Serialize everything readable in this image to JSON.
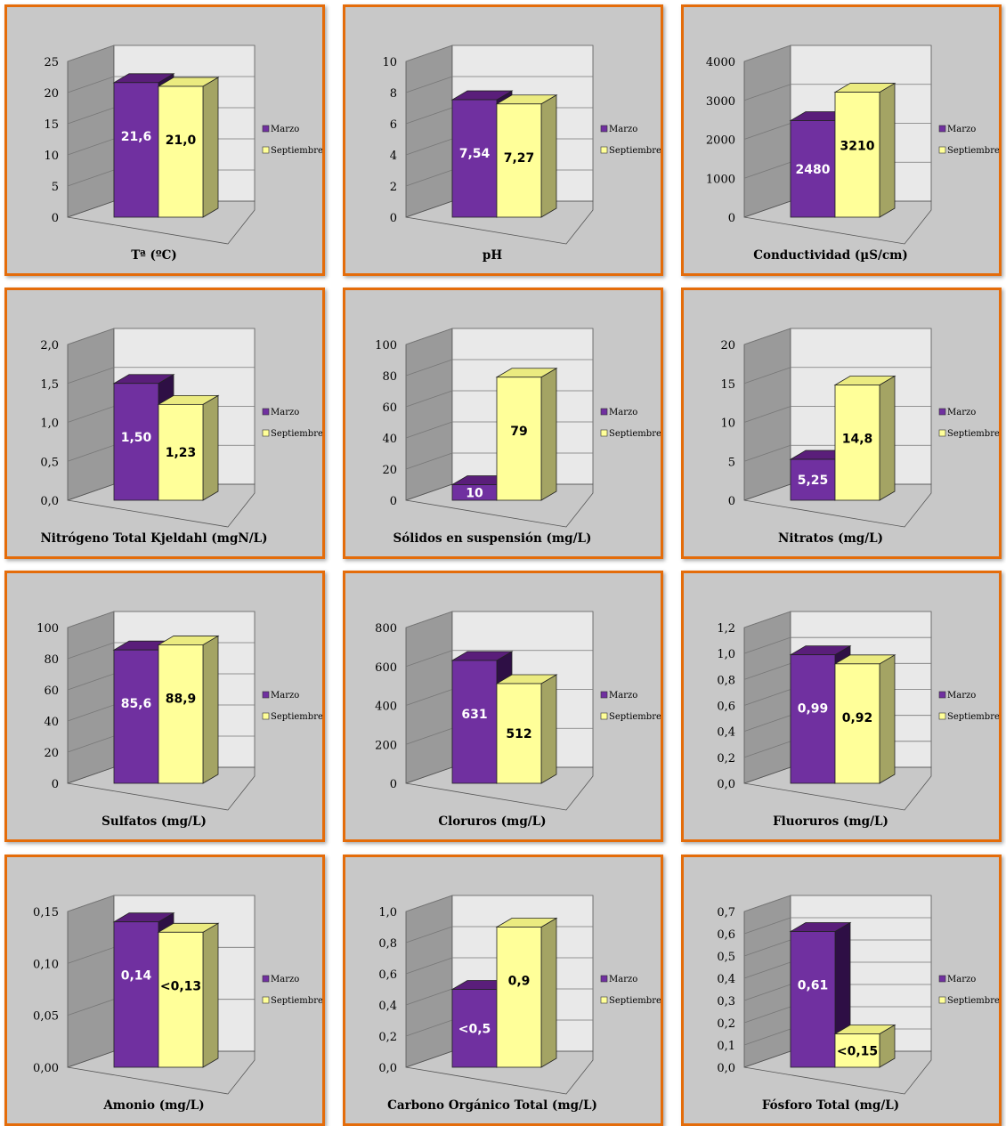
{
  "colors": {
    "marzo": {
      "front": "#7030a0",
      "top": "#5a1e7a",
      "side": "#2e0f45"
    },
    "septiembre": {
      "front": "#ffff99",
      "top": "#ebeb80",
      "side": "#a4a464"
    },
    "panel_border": "#e46c0a",
    "panel_bg": "#c8c8c8"
  },
  "legend": [
    "Marzo",
    "Septiembre"
  ],
  "chart_data": [
    {
      "type": "bar",
      "xlabel": "Tª (ºC)",
      "series": [
        {
          "name": "Marzo",
          "value": 21.6,
          "label": "21,6"
        },
        {
          "name": "Septiembre",
          "value": 21.0,
          "label": "21,0"
        }
      ],
      "ylim": [
        0,
        25
      ],
      "ticks": [
        "0",
        "5",
        "10",
        "15",
        "20",
        "25"
      ],
      "grid": true,
      "legend_position": "right"
    },
    {
      "type": "bar",
      "xlabel": "pH",
      "series": [
        {
          "name": "Marzo",
          "value": 7.54,
          "label": "7,54"
        },
        {
          "name": "Septiembre",
          "value": 7.27,
          "label": "7,27"
        }
      ],
      "ylim": [
        0,
        10
      ],
      "ticks": [
        "0",
        "2",
        "4",
        "6",
        "8",
        "10"
      ],
      "grid": true,
      "legend_position": "right"
    },
    {
      "type": "bar",
      "xlabel": "Conductividad (µS/cm)",
      "series": [
        {
          "name": "Marzo",
          "value": 2480,
          "label": "2480"
        },
        {
          "name": "Septiembre",
          "value": 3210,
          "label": "3210"
        }
      ],
      "ylim": [
        0,
        4000
      ],
      "ticks": [
        "0",
        "1000",
        "2000",
        "3000",
        "4000"
      ],
      "grid": true,
      "legend_position": "right"
    },
    {
      "type": "bar",
      "xlabel": "Nitrógeno Total Kjeldahl (mgN/L)",
      "series": [
        {
          "name": "Marzo",
          "value": 1.5,
          "label": "1,50"
        },
        {
          "name": "Septiembre",
          "value": 1.23,
          "label": "1,23"
        }
      ],
      "ylim": [
        0,
        2
      ],
      "ticks": [
        "0,0",
        "0,5",
        "1,0",
        "1,5",
        "2,0"
      ],
      "grid": true,
      "legend_position": "right"
    },
    {
      "type": "bar",
      "xlabel": "Sólidos en suspensión (mg/L)",
      "series": [
        {
          "name": "Marzo",
          "value": 10,
          "label": "10"
        },
        {
          "name": "Septiembre",
          "value": 79,
          "label": "79"
        }
      ],
      "ylim": [
        0,
        100
      ],
      "ticks": [
        "0",
        "20",
        "40",
        "60",
        "80",
        "100"
      ],
      "grid": true,
      "legend_position": "right"
    },
    {
      "type": "bar",
      "xlabel": "Nitratos (mg/L)",
      "series": [
        {
          "name": "Marzo",
          "value": 5.25,
          "label": "5,25"
        },
        {
          "name": "Septiembre",
          "value": 14.8,
          "label": "14,8"
        }
      ],
      "ylim": [
        0,
        20
      ],
      "ticks": [
        "0",
        "5",
        "10",
        "15",
        "20"
      ],
      "grid": true,
      "legend_position": "right"
    },
    {
      "type": "bar",
      "xlabel": "Sulfatos (mg/L)",
      "series": [
        {
          "name": "Marzo",
          "value": 85.6,
          "label": "85,6"
        },
        {
          "name": "Septiembre",
          "value": 88.9,
          "label": "88,9"
        }
      ],
      "ylim": [
        0,
        100
      ],
      "ticks": [
        "0",
        "20",
        "40",
        "60",
        "80",
        "100"
      ],
      "grid": true,
      "legend_position": "right"
    },
    {
      "type": "bar",
      "xlabel": "Cloruros (mg/L)",
      "series": [
        {
          "name": "Marzo",
          "value": 631,
          "label": "631"
        },
        {
          "name": "Septiembre",
          "value": 512,
          "label": "512"
        }
      ],
      "ylim": [
        0,
        800
      ],
      "ticks": [
        "0",
        "200",
        "400",
        "600",
        "800"
      ],
      "grid": true,
      "legend_position": "right"
    },
    {
      "type": "bar",
      "xlabel": "Fluoruros (mg/L)",
      "series": [
        {
          "name": "Marzo",
          "value": 0.99,
          "label": "0,99"
        },
        {
          "name": "Septiembre",
          "value": 0.92,
          "label": "0,92"
        }
      ],
      "ylim": [
        0,
        1.2
      ],
      "ticks": [
        "0,0",
        "0,2",
        "0,4",
        "0,6",
        "0,8",
        "1,0",
        "1,2"
      ],
      "grid": true,
      "legend_position": "right"
    },
    {
      "type": "bar",
      "xlabel": "Amonio (mg/L)",
      "series": [
        {
          "name": "Marzo",
          "value": 0.14,
          "label": "0,14"
        },
        {
          "name": "Septiembre",
          "value": 0.13,
          "label": "<0,13"
        }
      ],
      "ylim": [
        0,
        0.15
      ],
      "ticks": [
        "0,00",
        "0,05",
        "0,10",
        "0,15"
      ],
      "grid": true,
      "legend_position": "right"
    },
    {
      "type": "bar",
      "xlabel": "Carbono Orgánico Total (mg/L)",
      "series": [
        {
          "name": "Marzo",
          "value": 0.5,
          "label": "<0,5"
        },
        {
          "name": "Septiembre",
          "value": 0.9,
          "label": "0,9"
        }
      ],
      "ylim": [
        0,
        1
      ],
      "ticks": [
        "0,0",
        "0,2",
        "0,4",
        "0,6",
        "0,8",
        "1,0"
      ],
      "grid": true,
      "legend_position": "right"
    },
    {
      "type": "bar",
      "xlabel": "Fósforo Total (mg/L)",
      "series": [
        {
          "name": "Marzo",
          "value": 0.61,
          "label": "0,61"
        },
        {
          "name": "Septiembre",
          "value": 0.15,
          "label": "<0,15"
        }
      ],
      "ylim": [
        0,
        0.7
      ],
      "ticks": [
        "0,0",
        "0,1",
        "0,2",
        "0,3",
        "0,4",
        "0,5",
        "0,6",
        "0,7"
      ],
      "grid": true,
      "legend_position": "right"
    }
  ]
}
